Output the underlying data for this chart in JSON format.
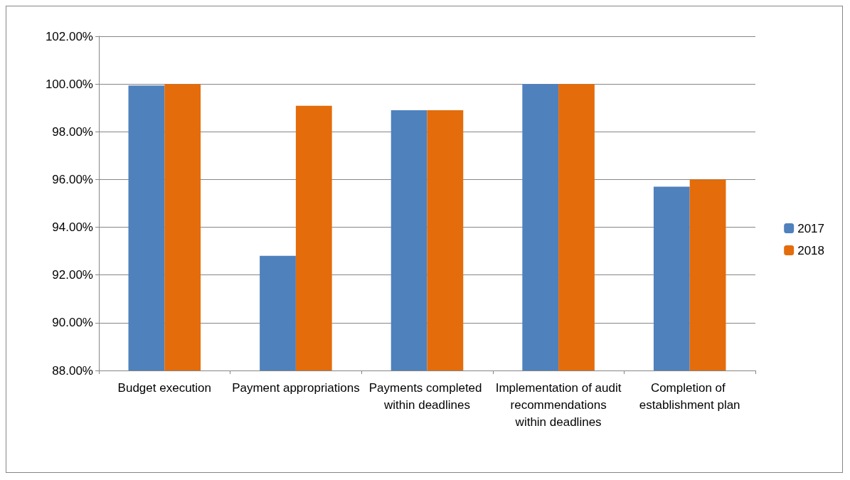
{
  "chart_data": {
    "type": "bar",
    "categories": [
      "Budget execution",
      "Payment appropriations",
      "Payments completed within deadlines",
      "Implementation of audit recommendations within deadlines",
      "Completion of establishment plan"
    ],
    "series": [
      {
        "name": "2017",
        "color": "#4f81bd",
        "values": [
          99.94,
          92.8,
          98.9,
          100,
          95.7
        ]
      },
      {
        "name": "2018",
        "color": "#e46c0a",
        "values": [
          100,
          99.09,
          98.9,
          100,
          96
        ]
      }
    ],
    "ylim": [
      88,
      102
    ],
    "yticks": [
      {
        "value": 88,
        "label": "88.00%"
      },
      {
        "value": 90,
        "label": "90.00%"
      },
      {
        "value": 92,
        "label": "92.00%"
      },
      {
        "value": 94,
        "label": "94.00%"
      },
      {
        "value": 96,
        "label": "96.00%"
      },
      {
        "value": 98,
        "label": "98.00%"
      },
      {
        "value": 100,
        "label": "100.00%"
      },
      {
        "value": 102,
        "label": "102.00%"
      }
    ],
    "grid": "y",
    "legend": "right"
  }
}
